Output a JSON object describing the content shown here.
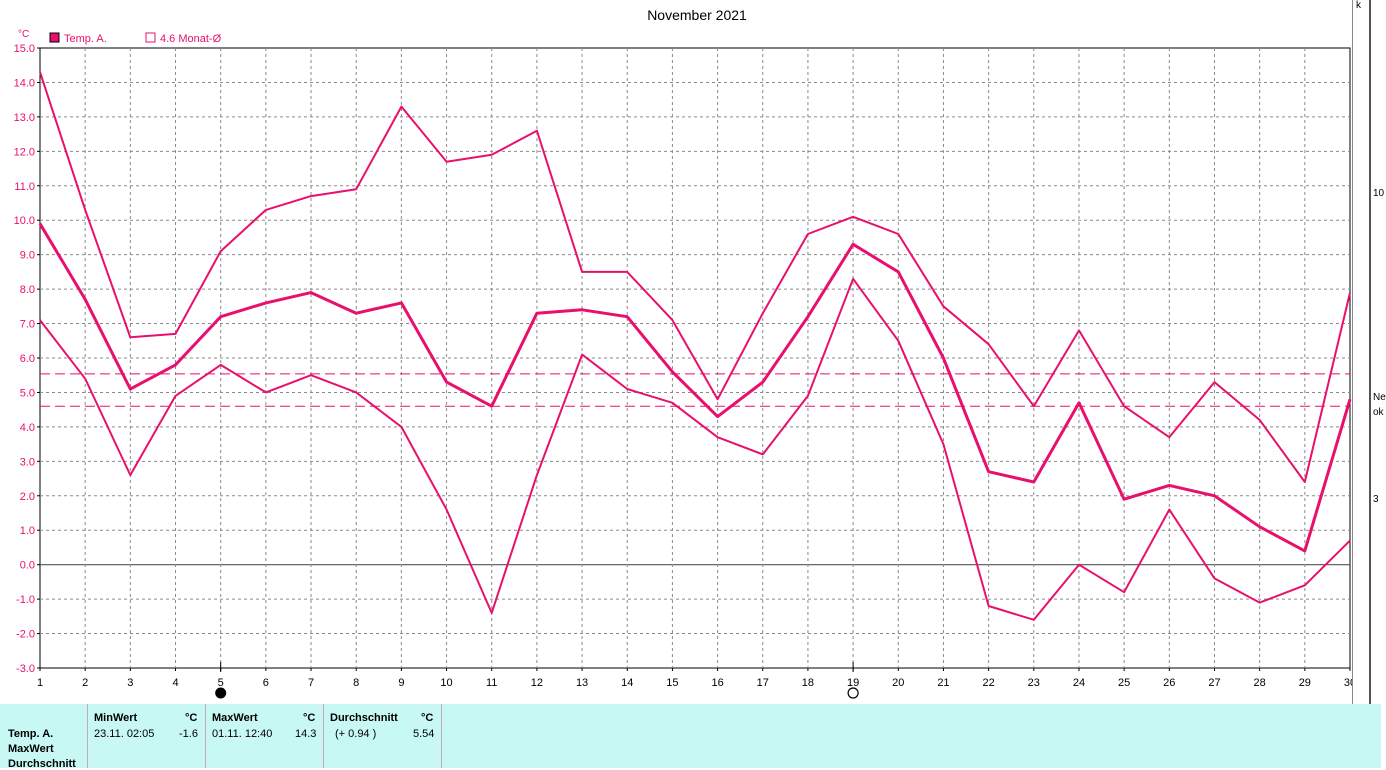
{
  "chart_data": {
    "type": "line",
    "title": "November 2021",
    "ylabel": "°C",
    "ylim": [
      -3.0,
      15.0
    ],
    "yticks": [
      "-3.0",
      "-2.0",
      "-1.0",
      "0.0",
      "1.0",
      "2.0",
      "3.0",
      "4.0",
      "5.0",
      "6.0",
      "7.0",
      "8.0",
      "9.0",
      "10.0",
      "11.0",
      "12.0",
      "13.0",
      "14.0",
      "15.0"
    ],
    "x": [
      1,
      2,
      3,
      4,
      5,
      6,
      7,
      8,
      9,
      10,
      11,
      12,
      13,
      14,
      15,
      16,
      17,
      18,
      19,
      20,
      21,
      22,
      23,
      24,
      25,
      26,
      27,
      28,
      29,
      30
    ],
    "legend": [
      {
        "label": "Temp. A.",
        "style": "filled"
      },
      {
        "label": "4.6 Monat-Ø",
        "style": "outline"
      }
    ],
    "series": [
      {
        "name": "Temp. A.",
        "role": "mean",
        "values": [
          9.9,
          7.7,
          5.1,
          5.8,
          7.2,
          7.6,
          7.9,
          7.3,
          7.6,
          5.3,
          4.6,
          7.3,
          7.4,
          7.2,
          5.6,
          4.3,
          5.3,
          7.2,
          9.3,
          8.5,
          6.0,
          2.7,
          2.4,
          4.7,
          1.9,
          2.3,
          2.0,
          1.1,
          0.4,
          4.8
        ]
      },
      {
        "role": "max",
        "values": [
          14.3,
          10.3,
          6.6,
          6.7,
          9.1,
          10.3,
          10.7,
          10.9,
          13.3,
          11.7,
          11.9,
          12.6,
          8.5,
          8.5,
          7.1,
          4.8,
          7.3,
          9.6,
          10.1,
          9.6,
          7.5,
          6.4,
          4.6,
          6.8,
          4.6,
          3.7,
          5.3,
          4.2,
          2.4,
          7.9
        ]
      },
      {
        "role": "min",
        "values": [
          7.1,
          5.4,
          2.6,
          4.9,
          5.8,
          5.0,
          5.5,
          5.0,
          4.0,
          1.6,
          -1.4,
          2.6,
          6.1,
          5.1,
          4.7,
          3.7,
          3.2,
          4.9,
          8.3,
          6.5,
          3.5,
          -1.2,
          -1.6,
          0.0,
          -0.8,
          1.6,
          -0.4,
          -1.1,
          -0.6,
          0.7
        ]
      }
    ],
    "reference_lines": [
      5.54,
      4.6
    ],
    "moon_phases": [
      {
        "day": 5,
        "phase": "new"
      },
      {
        "day": 19,
        "phase": "full"
      }
    ],
    "grid": true,
    "legend_position": "top-left",
    "colors": {
      "series": "#e8106c",
      "grid": "#8a8a8a",
      "zero": "#555555",
      "axis": "#000000"
    }
  },
  "stats": {
    "row_labels": [
      "Temp. A.",
      "MaxWert",
      "Durchschnitt"
    ],
    "min": {
      "header": "MinWert",
      "unit": "°C",
      "when": "23.11.  02:05",
      "value": "-1.6"
    },
    "max": {
      "header": "MaxWert",
      "unit": "°C",
      "when": "01.11.  12:40",
      "value": "14.3"
    },
    "avg": {
      "header": "Durchschnitt",
      "unit": "°C",
      "delta": "(+ 0.94 )",
      "value": "5.54"
    }
  },
  "sidebar": {
    "glyphs": [
      "k",
      "10",
      "Ne",
      "ok",
      "3"
    ]
  }
}
